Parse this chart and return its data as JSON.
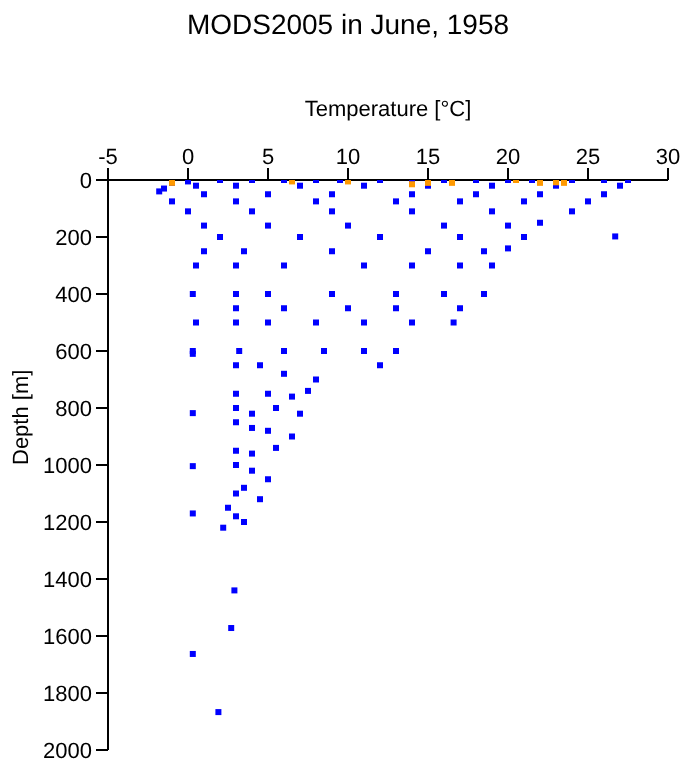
{
  "chart_data": {
    "type": "scatter",
    "title": "MODS2005 in June, 1958",
    "xlabel": "Temperature [°C]",
    "ylabel": "Depth [m]",
    "xlim": [
      -5,
      30
    ],
    "xticks": [
      -5,
      0,
      5,
      10,
      15,
      20,
      25,
      30
    ],
    "ylim": [
      2000,
      0
    ],
    "yticks": [
      0,
      200,
      400,
      600,
      800,
      1000,
      1200,
      1400,
      1600,
      1800,
      2000
    ],
    "marker": "square",
    "series": [
      {
        "color": "#0000ff",
        "x": [
          -1,
          0,
          2,
          4,
          6,
          8,
          9.5,
          12,
          14,
          16,
          18,
          20,
          21.5,
          24,
          26,
          27.5,
          -1.8,
          -1.5,
          0.5,
          3,
          7,
          11,
          15,
          19,
          23,
          27,
          1,
          5,
          9,
          14,
          18,
          22,
          26,
          -1,
          3,
          8,
          13,
          17,
          21,
          25,
          0,
          4,
          9,
          14,
          19,
          24,
          1,
          5,
          10,
          16,
          20,
          22,
          2,
          7,
          12,
          17,
          21,
          26.7,
          1,
          3.5,
          9,
          15,
          18.5,
          20,
          0.5,
          3,
          6,
          11,
          14,
          17,
          19,
          0.3,
          3,
          5,
          9,
          13,
          16,
          18.5,
          0.5,
          3,
          6,
          10,
          13,
          17,
          0.3,
          3,
          5,
          8,
          11,
          14,
          16.6,
          0.3,
          3.2,
          6,
          8.5,
          11,
          13,
          3,
          4.5,
          6,
          8,
          12,
          3,
          5,
          6.5,
          7.5,
          3,
          4,
          5.5,
          7,
          0.3,
          3,
          4,
          5,
          6.5,
          3,
          4,
          5.5,
          0.3,
          3,
          4,
          5,
          3,
          3.5,
          4.5,
          0.3,
          2.5,
          3,
          3.5,
          2.2,
          2.9,
          2.7,
          0.3,
          1.9
        ],
        "values": [
          10,
          5,
          0,
          0,
          0,
          0,
          0,
          0,
          0,
          0,
          0,
          0,
          0,
          0,
          0,
          0,
          40,
          30,
          20,
          20,
          20,
          20,
          20,
          20,
          20,
          20,
          50,
          50,
          50,
          50,
          50,
          50,
          50,
          75,
          75,
          75,
          75,
          75,
          75,
          75,
          110,
          110,
          110,
          110,
          110,
          110,
          160,
          160,
          160,
          160,
          160,
          150,
          200,
          200,
          200,
          200,
          200,
          198,
          250,
          250,
          250,
          250,
          250,
          240,
          300,
          300,
          300,
          300,
          300,
          300,
          300,
          400,
          400,
          400,
          400,
          400,
          400,
          400,
          500,
          450,
          450,
          450,
          450,
          450,
          600,
          500,
          500,
          500,
          500,
          500,
          500,
          610,
          600,
          600,
          600,
          600,
          600,
          650,
          650,
          680,
          700,
          650,
          750,
          750,
          760,
          740,
          800,
          820,
          800,
          820,
          818,
          850,
          870,
          880,
          900,
          950,
          960,
          940,
          1004,
          1000,
          1020,
          1050,
          1100,
          1080,
          1120,
          1170,
          1150,
          1180,
          1200,
          1220,
          1440,
          1572,
          1663,
          1867
        ]
      },
      {
        "color": "#ff9900",
        "x": [
          -1,
          6.5,
          10,
          14,
          15,
          16.5,
          20.5,
          22,
          23,
          23.5
        ],
        "values": [
          10,
          5,
          5,
          15,
          10,
          10,
          0,
          10,
          8,
          10
        ]
      }
    ]
  }
}
